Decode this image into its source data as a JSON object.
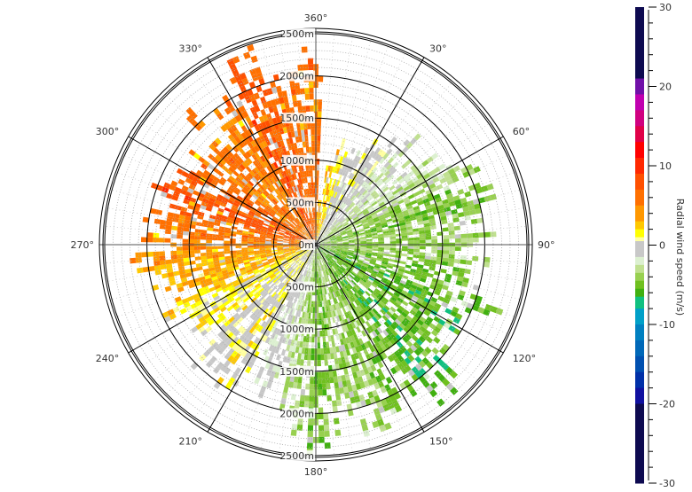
{
  "chart_data": {
    "type": "heatmap",
    "subtype": "polar-radar-ppi",
    "angle_ticks": [
      "360°",
      "30°",
      "60°",
      "90°",
      "120°",
      "150°",
      "180°",
      "210°",
      "240°",
      "270°",
      "300°",
      "330°"
    ],
    "angle_tick_values": [
      0,
      30,
      60,
      90,
      120,
      150,
      180,
      210,
      240,
      270,
      300,
      330
    ],
    "range_ticks": [
      "0m",
      "500m",
      "1000m",
      "1500m",
      "2000m",
      "2500m"
    ],
    "range_tick_values": [
      0,
      500,
      1000,
      1500,
      2000,
      2500
    ],
    "range_max": 2500,
    "colorbar": {
      "label": "Radial wind speed (m/s)",
      "ticks": [
        "30",
        "20",
        "10",
        "0",
        "-10",
        "-20",
        "-30"
      ],
      "tick_values": [
        30,
        20,
        10,
        0,
        -10,
        -20,
        -30
      ],
      "range": [
        -30,
        30
      ],
      "segments": [
        {
          "from": 21,
          "to": 30,
          "color": "#0d0a50"
        },
        {
          "from": 19,
          "to": 21,
          "color": "#7010a8"
        },
        {
          "from": 17,
          "to": 19,
          "color": "#c000b0"
        },
        {
          "from": 15,
          "to": 17,
          "color": "#d00080"
        },
        {
          "from": 13,
          "to": 15,
          "color": "#e00048"
        },
        {
          "from": 11,
          "to": 13,
          "color": "#ff0000"
        },
        {
          "from": 9,
          "to": 11,
          "color": "#ff2800"
        },
        {
          "from": 7,
          "to": 9,
          "color": "#ff5000"
        },
        {
          "from": 5,
          "to": 7,
          "color": "#ff7000"
        },
        {
          "from": 3,
          "to": 5,
          "color": "#ff9800"
        },
        {
          "from": 2,
          "to": 3,
          "color": "#ffc800"
        },
        {
          "from": 1,
          "to": 2,
          "color": "#ffff00"
        },
        {
          "from": 0.5,
          "to": 1,
          "color": "#ffffa0"
        },
        {
          "from": -1.5,
          "to": 0.5,
          "color": "#c8c8c8"
        },
        {
          "from": -2.5,
          "to": -1.5,
          "color": "#dcf0d0"
        },
        {
          "from": -3.5,
          "to": -2.5,
          "color": "#c0e090"
        },
        {
          "from": -4.5,
          "to": -3.5,
          "color": "#98d050"
        },
        {
          "from": -5.5,
          "to": -4.5,
          "color": "#70c020"
        },
        {
          "from": -6.5,
          "to": -5.5,
          "color": "#40b010"
        },
        {
          "from": -8,
          "to": -6.5,
          "color": "#10c080"
        },
        {
          "from": -10,
          "to": -8,
          "color": "#00a0c8"
        },
        {
          "from": -12,
          "to": -10,
          "color": "#0080c0"
        },
        {
          "from": -14,
          "to": -12,
          "color": "#0068b8"
        },
        {
          "from": -16,
          "to": -14,
          "color": "#0050b0"
        },
        {
          "from": -18,
          "to": -16,
          "color": "#0030a8"
        },
        {
          "from": -20,
          "to": -18,
          "color": "#1010a0"
        },
        {
          "from": -30,
          "to": -20,
          "color": "#0d0a50"
        }
      ]
    },
    "beams": [
      [
        0,
        2300,
        6
      ],
      [
        5,
        600,
        3
      ],
      [
        10,
        1100,
        2.5
      ],
      [
        15,
        1200,
        2
      ],
      [
        20,
        1300,
        0
      ],
      [
        25,
        1400,
        -1
      ],
      [
        30,
        1400,
        0
      ],
      [
        35,
        1500,
        -0.5
      ],
      [
        40,
        1600,
        -1.5
      ],
      [
        45,
        1700,
        -2
      ],
      [
        50,
        1700,
        -2.5
      ],
      [
        55,
        1800,
        -3
      ],
      [
        60,
        1900,
        -3
      ],
      [
        65,
        2000,
        -4
      ],
      [
        70,
        2100,
        -4.5
      ],
      [
        75,
        2200,
        -5
      ],
      [
        80,
        2100,
        -4
      ],
      [
        85,
        2100,
        -4
      ],
      [
        90,
        2000,
        -4
      ],
      [
        95,
        2100,
        -4
      ],
      [
        100,
        2000,
        -4.5
      ],
      [
        105,
        2100,
        -5
      ],
      [
        110,
        2300,
        -5
      ],
      [
        115,
        2300,
        -5.5
      ],
      [
        120,
        2200,
        -5.5
      ],
      [
        125,
        2000,
        -5
      ],
      [
        130,
        2100,
        -5
      ],
      [
        135,
        2300,
        -5.5
      ],
      [
        140,
        2300,
        -5.5
      ],
      [
        145,
        2100,
        -5
      ],
      [
        150,
        2000,
        -4.5
      ],
      [
        155,
        2100,
        -4.5
      ],
      [
        160,
        2300,
        -4
      ],
      [
        165,
        2200,
        -3.5
      ],
      [
        170,
        2200,
        -3.5
      ],
      [
        175,
        2300,
        -4.5
      ],
      [
        180,
        2500,
        -5
      ],
      [
        185,
        2200,
        -4
      ],
      [
        190,
        2000,
        -3
      ],
      [
        195,
        1600,
        -2
      ],
      [
        200,
        1900,
        -1
      ],
      [
        205,
        1700,
        -1
      ],
      [
        210,
        1900,
        0
      ],
      [
        215,
        2000,
        1
      ],
      [
        220,
        1800,
        0
      ],
      [
        225,
        2000,
        0
      ],
      [
        230,
        1700,
        1
      ],
      [
        235,
        1900,
        1.5
      ],
      [
        240,
        1800,
        1
      ],
      [
        245,
        2000,
        2
      ],
      [
        250,
        1700,
        3
      ],
      [
        255,
        1900,
        3
      ],
      [
        260,
        2100,
        3.5
      ],
      [
        265,
        2100,
        4
      ],
      [
        270,
        2000,
        5
      ],
      [
        275,
        1900,
        6
      ],
      [
        280,
        2000,
        6
      ],
      [
        285,
        1900,
        7
      ],
      [
        290,
        2100,
        8
      ],
      [
        295,
        2000,
        7
      ],
      [
        300,
        2000,
        7
      ],
      [
        305,
        1800,
        6
      ],
      [
        310,
        1700,
        5
      ],
      [
        315,
        2100,
        6
      ],
      [
        320,
        1800,
        5
      ],
      [
        325,
        1900,
        5
      ],
      [
        330,
        2000,
        6
      ],
      [
        335,
        2500,
        8
      ],
      [
        340,
        2400,
        7
      ],
      [
        345,
        2200,
        7
      ],
      [
        350,
        2000,
        6
      ],
      [
        355,
        2300,
        6
      ]
    ],
    "beam_fields": [
      "azimuth_deg",
      "max_range_m",
      "mean_radial_speed_ms"
    ]
  }
}
